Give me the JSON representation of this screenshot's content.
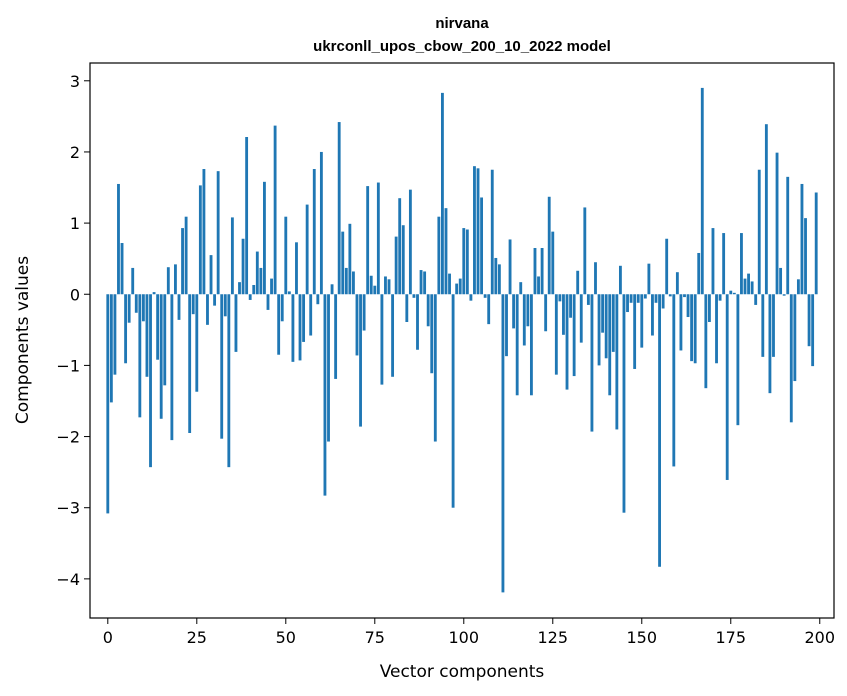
{
  "chart_data": {
    "type": "bar",
    "title": "nirvana",
    "subtitle": "ukrconll_upos_cbow_200_10_2022 model",
    "xlabel": "Vector components",
    "ylabel": "Components values",
    "xlim": [
      -5,
      204
    ],
    "ylim": [
      -4.55,
      3.25
    ],
    "xticks": [
      0,
      25,
      50,
      75,
      100,
      125,
      150,
      175,
      200
    ],
    "yticks": [
      -4,
      -3,
      -2,
      -1,
      0,
      1,
      2,
      3
    ],
    "xtick_labels": [
      "0",
      "25",
      "50",
      "75",
      "100",
      "125",
      "150",
      "175",
      "200"
    ],
    "ytick_labels": [
      "−4",
      "−3",
      "−2",
      "−1",
      "0",
      "1",
      "2",
      "3"
    ],
    "grid": false,
    "bar_color": "#1f77b4",
    "series": [
      {
        "values": [
          -3.08,
          -1.52,
          -1.13,
          1.55,
          0.72,
          -0.97,
          -0.4,
          0.37,
          -0.26,
          -1.73,
          -0.38,
          -1.16,
          -2.43,
          0.03,
          -0.92,
          -1.75,
          -1.28,
          0.38,
          -2.05,
          0.42,
          -0.36,
          0.93,
          1.09,
          -1.95,
          -0.28,
          -1.37,
          1.53,
          1.76,
          -0.43,
          0.55,
          -0.16,
          1.73,
          -2.03,
          -0.31,
          -2.43,
          1.08,
          -0.81,
          0.17,
          0.78,
          2.21,
          -0.08,
          0.13,
          0.6,
          0.37,
          1.58,
          -0.22,
          0.22,
          2.37,
          -0.85,
          -0.38,
          1.09,
          0.04,
          -0.95,
          0.73,
          -0.93,
          -0.67,
          1.26,
          -0.58,
          1.76,
          -0.14,
          2.0,
          -2.83,
          -2.07,
          0.14,
          -1.19,
          2.42,
          0.88,
          0.37,
          0.99,
          0.32,
          -0.86,
          -1.86,
          -0.51,
          1.52,
          0.26,
          0.12,
          1.57,
          -1.27,
          0.25,
          0.21,
          -1.16,
          0.81,
          1.35,
          0.97,
          -0.39,
          1.47,
          -0.05,
          -0.78,
          0.34,
          0.32,
          -0.45,
          -1.11,
          -2.07,
          1.09,
          2.83,
          1.21,
          0.29,
          -3.0,
          0.15,
          0.22,
          0.93,
          0.91,
          -0.09,
          1.8,
          1.77,
          1.36,
          -0.05,
          -0.42,
          1.75,
          0.51,
          0.42,
          -4.19,
          -0.87,
          0.77,
          -0.48,
          -1.42,
          0.17,
          -0.72,
          -0.45,
          -1.42,
          0.65,
          0.25,
          0.65,
          -0.52,
          1.37,
          0.88,
          -1.13,
          -0.1,
          -0.57,
          -1.34,
          -0.33,
          -1.15,
          0.33,
          -0.68,
          1.22,
          -0.15,
          -1.93,
          0.45,
          -1.0,
          -0.54,
          -0.9,
          -1.42,
          -0.81,
          -1.9,
          0.4,
          -3.07,
          -0.25,
          -0.12,
          -1.05,
          -0.12,
          -0.75,
          -0.06,
          0.43,
          -0.58,
          -0.12,
          -3.83,
          -0.2,
          0.78,
          -0.03,
          -2.42,
          0.31,
          -0.79,
          -0.04,
          -0.32,
          -0.94,
          -0.97,
          0.58,
          2.9,
          -1.32,
          -0.39,
          0.93,
          -0.97,
          -0.09,
          0.86,
          -2.61,
          0.05,
          0.02,
          -1.84,
          0.86,
          0.22,
          0.29,
          0.18,
          -0.15,
          1.75,
          -0.88,
          2.39,
          -1.39,
          -0.88,
          1.99,
          0.37,
          -0.02,
          1.65,
          -1.8,
          -1.22,
          0.21,
          1.55,
          1.07,
          -0.73,
          -1.01,
          1.43
        ]
      }
    ]
  }
}
